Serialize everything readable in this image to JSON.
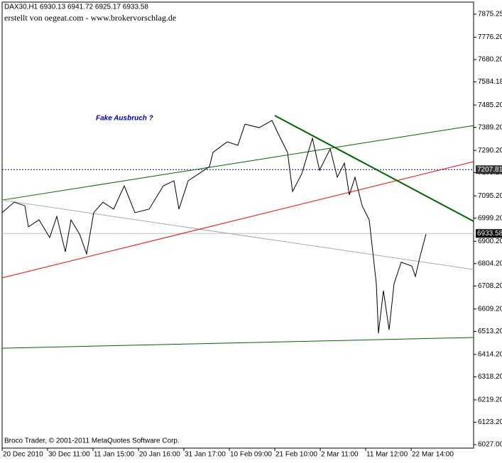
{
  "chart_data": {
    "type": "line",
    "header": "DAX30,H1  6930.13 6941.72 6925.17 6933.58",
    "subtitle": "erstellt von oegeat.com - www.brokervorschlag.de",
    "annotation": "Fake Ausbruch ?",
    "footer": "Broco Trader, © 2001-2011 MetaQuotes Software Corp.",
    "x": [
      0,
      17,
      32,
      37,
      52,
      67,
      77,
      89,
      97,
      109,
      119,
      129,
      142,
      157,
      172,
      187,
      207,
      227,
      242,
      249,
      262,
      277,
      292,
      297,
      317,
      332,
      342,
      362,
      380,
      392,
      402,
      409,
      422,
      437,
      447,
      462,
      472,
      482,
      489,
      497,
      507,
      517,
      522,
      527,
      530,
      537,
      545,
      552,
      562,
      577,
      582,
      589,
      597
    ],
    "series": [
      {
        "name": "DAX30,H1",
        "color": "#000000",
        "values": [
          7023,
          7068,
          7053,
          6962,
          6992,
          6916,
          7007,
          6855,
          6992,
          6931,
          6846,
          7023,
          7068,
          7038,
          7138,
          7023,
          7038,
          7138,
          7160,
          7038,
          7160,
          7190,
          7221,
          7282,
          7327,
          7312,
          7403,
          7388,
          7419,
          7342,
          7282,
          7114,
          7190,
          7342,
          7205,
          7297,
          7175,
          7236,
          7099,
          7175,
          7053,
          6992,
          6855,
          6718,
          6505,
          6688,
          6520,
          6718,
          6810,
          6794,
          6749,
          6840,
          6931
        ]
      }
    ],
    "trendlines": [
      {
        "color": "#006400",
        "width": 1,
        "x": [
          0,
          664
        ],
        "values": [
          7077,
          7397
        ]
      },
      {
        "color": "#a9a9a9",
        "width": 1,
        "x": [
          0,
          664
        ],
        "values": [
          7077,
          6779
        ]
      },
      {
        "color": "#ff0000",
        "width": 1,
        "x": [
          0,
          664
        ],
        "values": [
          6743,
          7242
        ]
      },
      {
        "color": "#006400",
        "width": 2,
        "x": [
          384,
          664
        ],
        "values": [
          7440,
          6986
        ]
      },
      {
        "color": "#006400",
        "width": 1,
        "x": [
          0,
          664
        ],
        "values": [
          6441,
          6487
        ]
      }
    ],
    "hlines": [
      {
        "value": 7207.81,
        "color": "#0000aa",
        "dashed": true,
        "box": "#333333"
      },
      {
        "value": 6933.58,
        "color": "#c0c0c0",
        "dashed": false,
        "box": "#000000"
      }
    ],
    "xlim": [
      0,
      664
    ],
    "xticks": [
      {
        "value": 0,
        "label": "20 Dec 2010"
      },
      {
        "value": 64,
        "label": "30 Dec 11:00"
      },
      {
        "value": 128,
        "label": "11 Jan 15:00"
      },
      {
        "value": 192,
        "label": "20 Jan 16:00"
      },
      {
        "value": 256,
        "label": "31 Jan 17:00"
      },
      {
        "value": 320,
        "label": "10 Feb 09:00"
      },
      {
        "value": 384,
        "label": "21 Feb 10:00"
      },
      {
        "value": 448,
        "label": "2 Mar 11:00"
      },
      {
        "value": 512,
        "label": "11 Mar 12:00"
      },
      {
        "value": 576,
        "label": "22 Mar 14:00"
      }
    ],
    "ylim": [
      6012,
      7927
    ],
    "yticks": [
      7875.25,
      {
        "value": 7776.2,
        "label": "7776.20"
      },
      {
        "value": 7680.2,
        "label": "7680.20"
      },
      7584.18,
      {
        "value": 7485.2,
        "label": "7485.20"
      },
      {
        "value": 7389.2,
        "label": "7389.20"
      },
      {
        "value": 7290.2,
        "label": "7290.20"
      },
      {
        "value": 7195.2,
        "label": "7195.20"
      },
      {
        "value": 7095.2,
        "label": "7095.20"
      },
      {
        "value": 6999.2,
        "label": "6999.20"
      },
      {
        "value": 6900.2,
        "label": "6900.20"
      },
      {
        "value": 6804.2,
        "label": "6804.20"
      },
      {
        "value": 6708.2,
        "label": "6708.20"
      },
      {
        "value": 6609.2,
        "label": "6609.20"
      },
      {
        "value": 6513.2,
        "label": "6513.20"
      },
      {
        "value": 6414.2,
        "label": "6414.20"
      },
      {
        "value": 6318.2,
        "label": "6318.20"
      },
      {
        "value": 6219.2,
        "label": "6219.20"
      },
      {
        "value": 6123.2,
        "label": "6123.20"
      },
      {
        "value": 6027.0,
        "label": "6027.00"
      }
    ]
  }
}
